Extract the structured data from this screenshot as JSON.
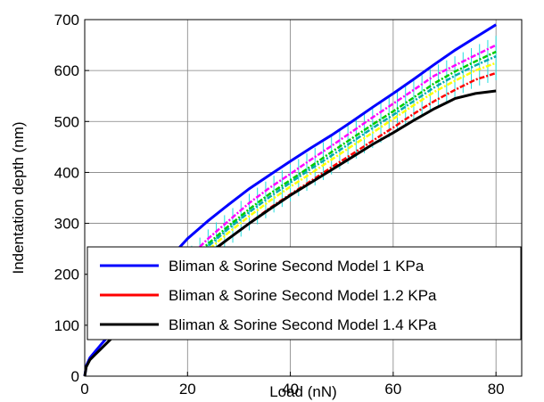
{
  "chart_data": {
    "type": "line",
    "xlabel": "Load (nN)",
    "ylabel": "Indentation depth (nm)",
    "xlim": [
      0,
      85
    ],
    "ylim": [
      0,
      700
    ],
    "x_ticks": [
      0,
      20,
      40,
      60,
      80
    ],
    "y_ticks": [
      0,
      100,
      200,
      300,
      400,
      500,
      600,
      700
    ],
    "grid": true,
    "legend_placement": "bottom-right",
    "series": [
      {
        "name": "Bliman & Sorine Second Model 1 KPa",
        "color": "#0000ff",
        "style": "solid",
        "x": [
          0,
          0.3,
          1,
          2,
          3,
          4,
          5,
          6,
          7,
          8,
          9,
          10,
          12,
          14,
          16,
          18,
          20,
          24,
          28,
          32,
          36,
          40,
          44,
          48,
          52,
          56,
          60,
          64,
          68,
          72,
          76,
          80
        ],
        "y": [
          0,
          20,
          36,
          48,
          60,
          72,
          84,
          96,
          108,
          120,
          133,
          147,
          175,
          200,
          225,
          248,
          270,
          305,
          337,
          368,
          395,
          422,
          448,
          473,
          500,
          528,
          555,
          583,
          612,
          640,
          665,
          690
        ]
      },
      {
        "name": "",
        "color": "#ff00ff",
        "style": "dash-dot",
        "x": [
          16,
          20,
          24,
          28,
          32,
          36,
          40,
          44,
          48,
          52,
          56,
          60,
          64,
          68,
          72,
          76,
          80
        ],
        "y": [
          200,
          230,
          270,
          305,
          340,
          370,
          397,
          425,
          452,
          480,
          508,
          535,
          562,
          590,
          610,
          630,
          650
        ]
      },
      {
        "name": "",
        "color": "#00cc00",
        "style": "dash-dot",
        "x": [
          16,
          20,
          24,
          28,
          32,
          36,
          40,
          44,
          48,
          52,
          56,
          60,
          64,
          68,
          72,
          76,
          80
        ],
        "y": [
          195,
          222,
          260,
          295,
          328,
          358,
          385,
          412,
          440,
          467,
          494,
          520,
          547,
          575,
          598,
          618,
          637
        ]
      },
      {
        "name": "",
        "color": "#00aaaa",
        "style": "dash-dot",
        "x": [
          16,
          20,
          24,
          28,
          32,
          36,
          40,
          44,
          48,
          52,
          56,
          60,
          64,
          68,
          72,
          76,
          80
        ],
        "y": [
          192,
          218,
          255,
          290,
          322,
          352,
          380,
          407,
          433,
          460,
          487,
          513,
          540,
          567,
          590,
          610,
          628
        ]
      },
      {
        "name": "",
        "color": "#ffff00",
        "style": "dash-dot",
        "x": [
          16,
          20,
          24,
          28,
          32,
          36,
          40,
          44,
          48,
          52,
          56,
          60,
          64,
          68,
          72,
          76,
          80
        ],
        "y": [
          188,
          212,
          248,
          282,
          314,
          344,
          372,
          398,
          425,
          452,
          478,
          505,
          532,
          558,
          580,
          600,
          615
        ]
      },
      {
        "name": "Bliman & Sorine Second Model 1.2 KPa",
        "color": "#ff0000",
        "style": "dash-dot",
        "x": [
          16,
          20,
          24,
          28,
          32,
          36,
          40,
          44,
          48,
          52,
          56,
          60,
          64,
          68,
          72,
          76,
          80
        ],
        "y": [
          182,
          205,
          238,
          270,
          300,
          330,
          357,
          383,
          410,
          436,
          462,
          488,
          515,
          540,
          562,
          582,
          595
        ]
      },
      {
        "name": "Bliman & Sorine Second Model 1.4 KPa",
        "color": "#000000",
        "style": "solid",
        "x": [
          0,
          0.3,
          1,
          2,
          3,
          4,
          5,
          6,
          7,
          8,
          9,
          10,
          12,
          14,
          16,
          18,
          20,
          24,
          28,
          32,
          36,
          40,
          44,
          48,
          52,
          56,
          60,
          64,
          68,
          72,
          76,
          80
        ],
        "y": [
          0,
          18,
          32,
          42,
          52,
          62,
          72,
          82,
          92,
          102,
          112,
          122,
          140,
          160,
          178,
          195,
          210,
          240,
          270,
          300,
          328,
          355,
          380,
          405,
          430,
          455,
          478,
          502,
          525,
          545,
          555,
          560
        ]
      }
    ]
  }
}
